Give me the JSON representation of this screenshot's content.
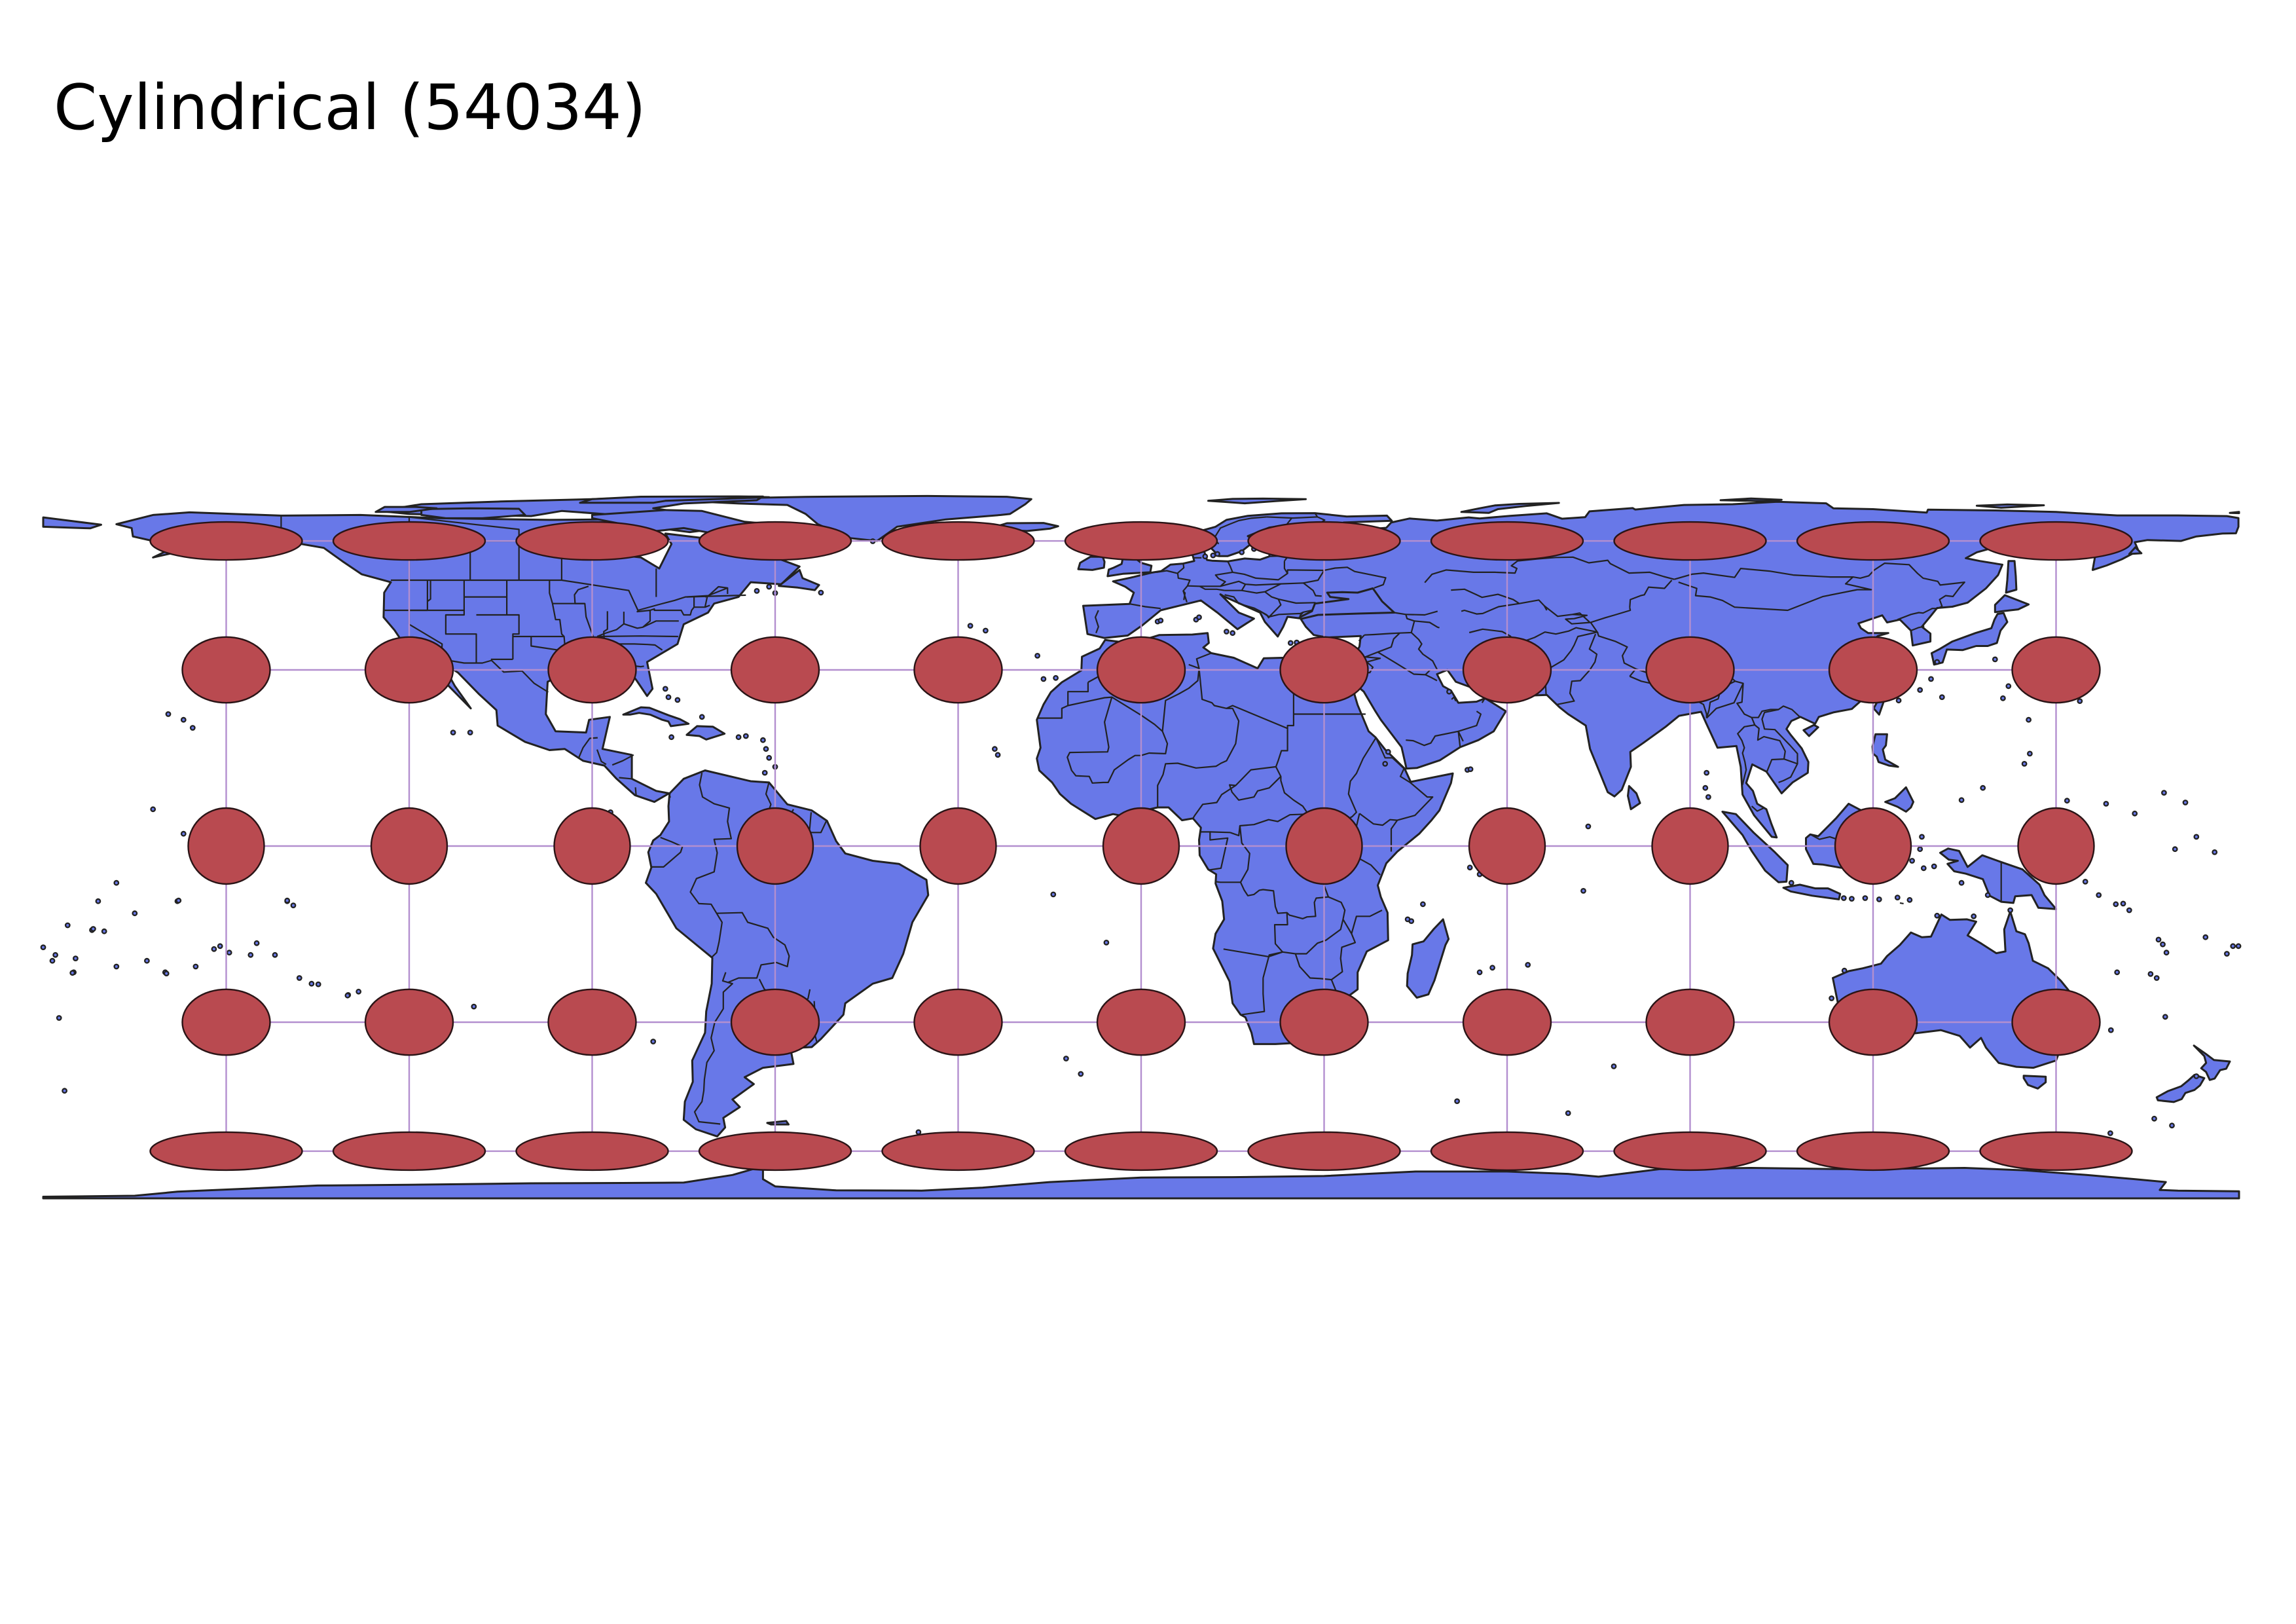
{
  "title": "Cylindrical (54034)",
  "map": {
    "projection_code": "54034",
    "land_color": "#6878e8",
    "land_stroke_color": "#222222",
    "indicatrix_color": "#b94a50",
    "indicatrix_stroke_color": "#2a1416",
    "graticule_color": "#b38fcf",
    "graticule_longitudes": [
      -150,
      -120,
      -90,
      -60,
      -30,
      0,
      30,
      60,
      90,
      120,
      150
    ],
    "graticule_latitudes": [
      60,
      30,
      0,
      -30,
      -60
    ],
    "tissot_indicatrices": {
      "longitudes": [
        -150,
        -120,
        -90,
        -60,
        -30,
        0,
        30,
        60,
        90,
        120,
        150
      ],
      "latitudes": [
        60,
        30,
        0,
        -30,
        -60
      ]
    },
    "layers": [
      "countries",
      "graticule",
      "tissot-indicatrix"
    ]
  }
}
